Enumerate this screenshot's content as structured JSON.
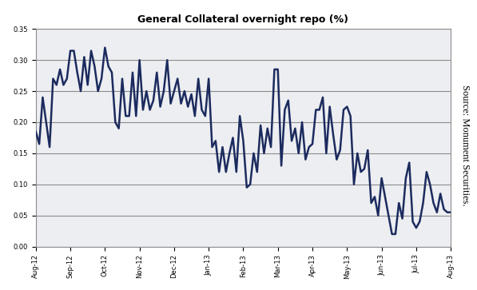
{
  "chart_data": {
    "type": "line",
    "title": "General Collateral overnight repo (%)",
    "source": "Source: Monument Securities.",
    "categories": [
      "Aug-12",
      null,
      null,
      null,
      null,
      null,
      null,
      null,
      null,
      null,
      "Sep-12",
      null,
      null,
      null,
      null,
      null,
      null,
      null,
      null,
      null,
      "Oct-12",
      null,
      null,
      null,
      null,
      null,
      null,
      null,
      null,
      null,
      "Nov-12",
      null,
      null,
      null,
      null,
      null,
      null,
      null,
      null,
      null,
      "Dec-12",
      null,
      null,
      null,
      null,
      null,
      null,
      null,
      null,
      null,
      "Jan-13",
      null,
      null,
      null,
      null,
      null,
      null,
      null,
      null,
      null,
      "Feb-13",
      null,
      null,
      null,
      null,
      null,
      null,
      null,
      null,
      null,
      "Mar-13",
      null,
      null,
      null,
      null,
      null,
      null,
      null,
      null,
      null,
      "Apr-13",
      null,
      null,
      null,
      null,
      null,
      null,
      null,
      null,
      null,
      "May-13",
      null,
      null,
      null,
      null,
      null,
      null,
      null,
      null,
      null,
      "Jun-13",
      null,
      null,
      null,
      null,
      null,
      null,
      null,
      null,
      null,
      "Jul-13",
      null,
      null,
      null,
      null,
      null,
      null,
      null,
      null,
      null,
      "Aug-13"
    ],
    "values": [
      0.185,
      0.165,
      0.24,
      0.2,
      0.16,
      0.27,
      0.26,
      0.285,
      0.26,
      0.27,
      0.315,
      0.315,
      0.28,
      0.25,
      0.305,
      0.26,
      0.315,
      0.29,
      0.25,
      0.27,
      0.32,
      0.29,
      0.28,
      0.2,
      0.19,
      0.27,
      0.21,
      0.21,
      0.28,
      0.21,
      0.3,
      0.22,
      0.25,
      0.22,
      0.235,
      0.28,
      0.225,
      0.25,
      0.3,
      0.23,
      0.25,
      0.27,
      0.23,
      0.25,
      0.225,
      0.245,
      0.21,
      0.27,
      0.22,
      0.21,
      0.27,
      0.16,
      0.17,
      0.12,
      0.16,
      0.12,
      0.15,
      0.175,
      0.12,
      0.21,
      0.17,
      0.095,
      0.1,
      0.15,
      0.12,
      0.195,
      0.15,
      0.19,
      0.16,
      0.285,
      0.285,
      0.13,
      0.22,
      0.235,
      0.17,
      0.19,
      0.15,
      0.2,
      0.14,
      0.16,
      0.165,
      0.22,
      0.22,
      0.24,
      0.15,
      0.225,
      0.18,
      0.14,
      0.155,
      0.22,
      0.225,
      0.21,
      0.1,
      0.15,
      0.12,
      0.125,
      0.155,
      0.07,
      0.08,
      0.05,
      0.11,
      0.08,
      0.05,
      0.02,
      0.02,
      0.07,
      0.045,
      0.11,
      0.135,
      0.04,
      0.03,
      0.04,
      0.07,
      0.12,
      0.1,
      0.07,
      0.055,
      0.085,
      0.06,
      0.055,
      0.055
    ],
    "color": "#1c2b5e",
    "ylim": [
      0,
      0.35
    ],
    "yticks": [
      {
        "value": 0.0,
        "label": "0.00"
      },
      0.05,
      {
        "value": 0.1,
        "label": "0.10"
      },
      0.15,
      {
        "value": 0.2,
        "label": "0.20"
      },
      0.25,
      {
        "value": 0.3,
        "label": "0.30"
      },
      0.35
    ],
    "grid": true
  }
}
